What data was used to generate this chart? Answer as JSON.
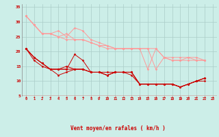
{
  "bg_color": "#cceee8",
  "grid_color": "#aaccc8",
  "line_color_dark": "#cc0000",
  "line_color_light": "#ff9999",
  "xlabel": "Vent moyen/en rafales ( km/h )",
  "xlabel_color": "#cc0000",
  "tick_color": "#cc0000",
  "xlim": [
    -0.5,
    23.5
  ],
  "ylim": [
    5,
    36
  ],
  "yticks": [
    5,
    10,
    15,
    20,
    25,
    30,
    35
  ],
  "xticks": [
    0,
    1,
    2,
    3,
    4,
    5,
    6,
    7,
    8,
    9,
    10,
    11,
    12,
    13,
    14,
    15,
    16,
    17,
    18,
    19,
    20,
    21,
    22,
    23
  ],
  "lines_light": [
    [
      32,
      29,
      26,
      26,
      27,
      25,
      28,
      27,
      24,
      23,
      22,
      21,
      21,
      21,
      21,
      21,
      21,
      18,
      17,
      17,
      18,
      17,
      17
    ],
    [
      32,
      29,
      26,
      26,
      25,
      24,
      24,
      24,
      23,
      22,
      21,
      21,
      21,
      21,
      21,
      14,
      21,
      18,
      17,
      17,
      17,
      17,
      17
    ],
    [
      32,
      29,
      26,
      26,
      25,
      26,
      24,
      24,
      23,
      22,
      22,
      21,
      21,
      21,
      21,
      21,
      14,
      18,
      18,
      18,
      18,
      18,
      17
    ]
  ],
  "lines_dark": [
    [
      21,
      18,
      16,
      14,
      14,
      14,
      19,
      17,
      13,
      13,
      13,
      13,
      13,
      13,
      9,
      9,
      9,
      9,
      9,
      8,
      9,
      10,
      11
    ],
    [
      21,
      18,
      16,
      14,
      14,
      14,
      14,
      14,
      13,
      13,
      12,
      13,
      13,
      13,
      9,
      9,
      9,
      9,
      9,
      8,
      9,
      10,
      11
    ],
    [
      21,
      18,
      16,
      14,
      12,
      13,
      14,
      14,
      13,
      13,
      12,
      13,
      13,
      13,
      9,
      9,
      9,
      9,
      9,
      8,
      9,
      10,
      11
    ],
    [
      21,
      17,
      15,
      14,
      14,
      15,
      14,
      14,
      13,
      13,
      12,
      13,
      13,
      12,
      9,
      9,
      9,
      9,
      9,
      8,
      9,
      10,
      10
    ]
  ]
}
